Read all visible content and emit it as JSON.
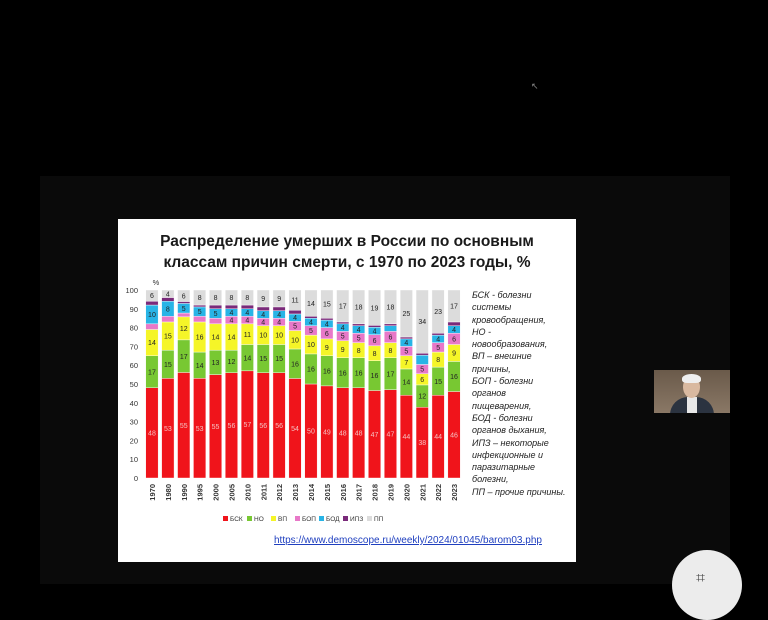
{
  "chart_data": {
    "type": "bar",
    "stacked": true,
    "title_line1": "Распределение умерших в России по основным",
    "title_line2": "классам причин смерти, с 1970 по 2023 годы, %",
    "ylabel": "%",
    "ylim": [
      0,
      100
    ],
    "yticks": [
      "0",
      "10",
      "20",
      "30",
      "40",
      "50",
      "60",
      "70",
      "80",
      "90",
      "100"
    ],
    "categories": [
      "1970",
      "1980",
      "1990",
      "1995",
      "2000",
      "2005",
      "2010",
      "2011",
      "2012",
      "2013",
      "2014",
      "2015",
      "2016",
      "2017",
      "2018",
      "2019",
      "2020",
      "2021",
      "2022",
      "2023"
    ],
    "series": [
      {
        "name": "БСК",
        "color": "#f0141b",
        "values": [
          48,
          53,
          55,
          53,
          55,
          56,
          57,
          56,
          56,
          54,
          50,
          49,
          48,
          48,
          47,
          47,
          44,
          38,
          44,
          46
        ],
        "labels": [
          "48",
          "53",
          "55",
          "53",
          "55",
          "56",
          "57",
          "56",
          "56",
          "54",
          "50",
          "49",
          "48",
          "48",
          "47",
          "47",
          "44",
          "38",
          "44",
          "46"
        ]
      },
      {
        "name": "НО",
        "color": "#78c832",
        "values": [
          17,
          15,
          17,
          14,
          13,
          12,
          14,
          15,
          15,
          16,
          16,
          16,
          16,
          16,
          16,
          17,
          14,
          12,
          15,
          16
        ],
        "labels": [
          "17",
          "15",
          "17",
          "14",
          "13",
          "12",
          "14",
          "15",
          "15",
          "16",
          "16",
          "16",
          "16",
          "16",
          "16",
          "17",
          "14",
          "12",
          "15",
          "16"
        ]
      },
      {
        "name": "ВП",
        "color": "#f5f528",
        "values": [
          14,
          15,
          12,
          16,
          14,
          14,
          11,
          10,
          10,
          10,
          10,
          9,
          9,
          8,
          8,
          8,
          7,
          6,
          8,
          9
        ],
        "labels": [
          "14",
          "15",
          "12",
          "16",
          "14",
          "14",
          "11",
          "10",
          "10",
          "10",
          "10",
          "9",
          "9",
          "8",
          "8",
          "8",
          "7",
          "6",
          "8",
          "9"
        ]
      },
      {
        "name": "БОП",
        "color": "#e878c8",
        "values": [
          3,
          3,
          2,
          3,
          3,
          4,
          4,
          4,
          4,
          5,
          5,
          6,
          5,
          5,
          6,
          6,
          5,
          5,
          5,
          6
        ],
        "labels": [
          "",
          "",
          "",
          "",
          "",
          "4",
          "4",
          "4",
          "4",
          "5",
          "5",
          "6",
          "5",
          "5",
          "6",
          "6",
          "5",
          "5",
          "5",
          "6"
        ]
      },
      {
        "name": "БОД",
        "color": "#28b4e6",
        "values": [
          10,
          8,
          5,
          5,
          5,
          4,
          4,
          4,
          4,
          4,
          4,
          4,
          4,
          4,
          4,
          3,
          4,
          5,
          4,
          4
        ],
        "labels": [
          "10",
          "8",
          "5",
          "5",
          "5",
          "4",
          "4",
          "4",
          "4",
          "4",
          "4",
          "4",
          "4",
          "4",
          "4",
          "",
          "4",
          "",
          "4",
          "4"
        ]
      },
      {
        "name": "ИПЗ",
        "color": "#7a2a7a",
        "values": [
          2,
          2,
          1,
          1,
          2,
          2,
          2,
          2,
          2,
          2,
          1,
          1,
          1,
          1,
          1,
          1,
          1,
          1,
          1,
          2
        ],
        "labels": [
          "",
          "",
          "",
          "",
          "",
          "",
          "",
          "",
          "",
          "",
          "",
          "",
          "",
          "",
          "",
          "",
          "",
          "",
          "",
          ""
        ]
      },
      {
        "name": "ПП",
        "color": "#dcdcdc",
        "values": [
          6,
          4,
          6,
          8,
          8,
          8,
          8,
          9,
          9,
          11,
          14,
          15,
          17,
          18,
          19,
          18,
          25,
          34,
          23,
          17
        ],
        "labels": [
          "6",
          "4",
          "6",
          "8",
          "8",
          "8",
          "8",
          "9",
          "9",
          "11",
          "14",
          "15",
          "17",
          "18",
          "19",
          "18",
          "25",
          "34",
          "23",
          "17"
        ]
      }
    ],
    "legend": [
      "БСК",
      "НО",
      "ВП",
      "БОП",
      "БОД",
      "ИПЗ",
      "ПП"
    ],
    "legend_placement": "bottom",
    "grid": false
  },
  "legend_text": [
    "БСК - болезни",
    "системы",
    "кровообращения,",
    "НО -",
    "новообразования,",
    "ВП – внешние",
    "причины,",
    "БОП - болезни",
    "органов",
    "пищеварения,",
    "БОД - болезни",
    "органов дыхания,",
    "ИПЗ – некоторые",
    "инфекционные и",
    "паразитарные",
    "болезни,",
    "ПП – прочие причины."
  ],
  "source": "https://www.demoscope.ru/weekly/2024/01045/barom03.php"
}
